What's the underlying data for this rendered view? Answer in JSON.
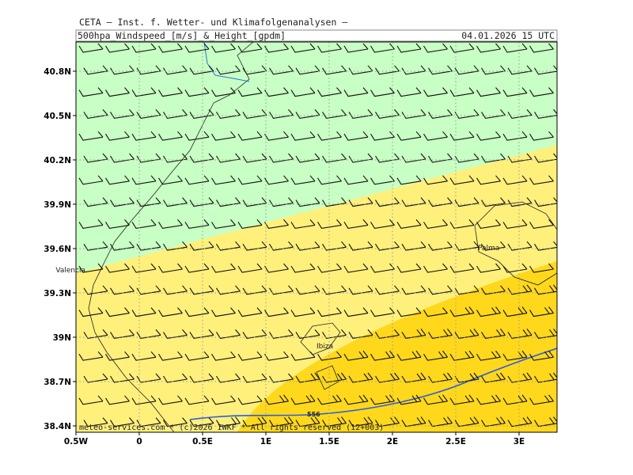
{
  "header": "CETA – Inst. f. Wetter- und Klimafolgenanalysen –",
  "title": "500hpa_Windspeed_[m/s]_&_Height_[gpdm]",
  "date": "04.01.2026 15 UTC",
  "map": {
    "xlim": [
      -0.5,
      3.3
    ],
    "ylim": [
      38.357,
      40.998
    ],
    "xticks": [
      {
        "value": -0.5,
        "label": "0.5W"
      },
      0,
      {
        "value": 0.5,
        "label": "0.5E"
      },
      {
        "value": 1,
        "label": "1E"
      },
      {
        "value": 1.5,
        "label": "1.5E"
      },
      {
        "value": 2,
        "label": "2E"
      },
      {
        "value": 2.5,
        "label": "2.5E"
      },
      {
        "value": 3,
        "label": "3E"
      }
    ],
    "yticks": [
      {
        "value": 40.8,
        "label": "40.8N"
      },
      {
        "value": 40.5,
        "label": "40.5N"
      },
      {
        "value": 40.2,
        "label": "40.2N"
      },
      {
        "value": 39.9,
        "label": "39.9N"
      },
      {
        "value": 39.6,
        "label": "39.6N"
      },
      {
        "value": 39.3,
        "label": "39.3N"
      },
      {
        "value": 39,
        "label": "39N"
      },
      {
        "value": 38.7,
        "label": "38.7N"
      },
      {
        "value": 38.4,
        "label": "38.4N"
      }
    ],
    "places": [
      {
        "name": "Valencia",
        "lon": -0.66,
        "lat": 39.44
      },
      {
        "name": "Palma",
        "lon": 2.675,
        "lat": 39.59
      },
      {
        "name": "Ibiza",
        "lon": 1.4,
        "lat": 38.925
      }
    ],
    "contour_label": {
      "value": 556,
      "lon": 1.325,
      "lat": 38.464
    }
  },
  "footer": "meteo-services.com * (c)2026 IWKF * All rights reserved (12+003)"
}
